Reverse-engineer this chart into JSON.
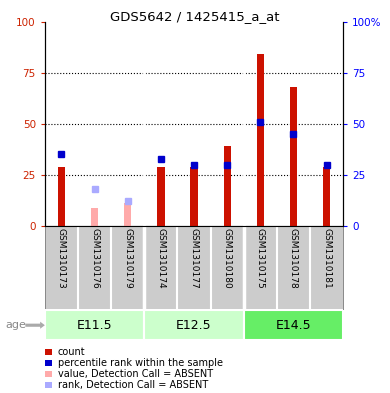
{
  "title": "GDS5642 / 1425415_a_at",
  "samples": [
    "GSM1310173",
    "GSM1310176",
    "GSM1310179",
    "GSM1310174",
    "GSM1310177",
    "GSM1310180",
    "GSM1310175",
    "GSM1310178",
    "GSM1310181"
  ],
  "age_groups": [
    {
      "label": "E11.5",
      "start": 0,
      "end": 3,
      "color": "#ccffcc"
    },
    {
      "label": "E12.5",
      "start": 3,
      "end": 6,
      "color": "#ccffcc"
    },
    {
      "label": "E14.5",
      "start": 6,
      "end": 9,
      "color": "#66ee66"
    }
  ],
  "count_values": [
    29,
    0,
    0,
    29,
    29,
    39,
    84,
    68,
    29
  ],
  "rank_values": [
    35,
    0,
    0,
    33,
    30,
    30,
    51,
    45,
    30
  ],
  "absent_value_values": [
    0,
    9,
    11,
    0,
    0,
    0,
    0,
    0,
    0
  ],
  "absent_rank_values": [
    0,
    18,
    12,
    0,
    0,
    0,
    0,
    0,
    0
  ],
  "absent_flags": [
    false,
    true,
    true,
    false,
    false,
    false,
    false,
    false,
    false
  ],
  "count_color": "#cc1100",
  "rank_color": "#0000cc",
  "absent_value_color": "#ffaaaa",
  "absent_rank_color": "#aaaaff",
  "ylim": [
    0,
    100
  ],
  "yticks": [
    0,
    25,
    50,
    75,
    100
  ],
  "sample_bg_color": "#cccccc",
  "legend_items": [
    {
      "label": "count",
      "color": "#cc1100"
    },
    {
      "label": "percentile rank within the sample",
      "color": "#0000cc"
    },
    {
      "label": "value, Detection Call = ABSENT",
      "color": "#ffaaaa"
    },
    {
      "label": "rank, Detection Call = ABSENT",
      "color": "#aaaaff"
    }
  ]
}
